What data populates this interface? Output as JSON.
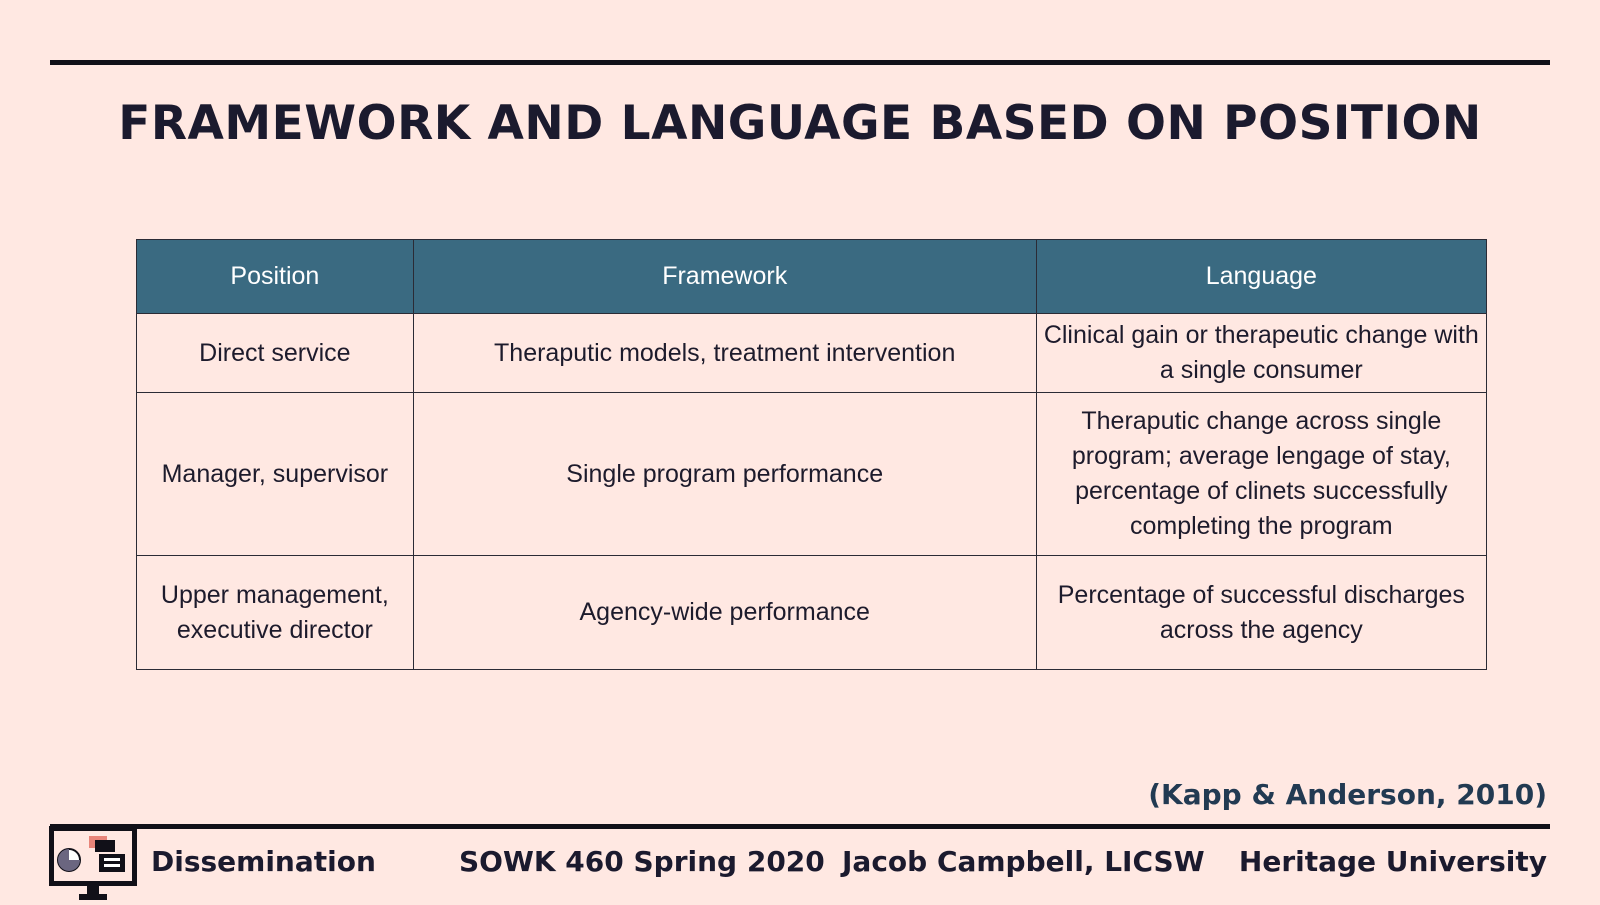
{
  "slide": {
    "title": "FRAMEWORK AND LANGUAGE BASED ON POSITION",
    "citation": "(Kapp & Anderson, 2010)"
  },
  "table": {
    "headers": [
      "Position",
      "Framework",
      "Language"
    ],
    "rows": [
      {
        "position": "Direct service",
        "framework": "Theraputic models, treatment intervention",
        "language": "Clinical gain or therapeutic change with a single consumer"
      },
      {
        "position": "Manager, supervisor",
        "framework": "Single program performance",
        "language": "Theraputic change across single program; average lengage of stay, percentage of clinets successfully completing the program"
      },
      {
        "position": "Upper management, executive director",
        "framework": "Agency-wide performance",
        "language": "Percentage of successful discharges across the agency"
      }
    ]
  },
  "footer": {
    "icon": "presentation-monitor-icon",
    "section": "Dissemination",
    "course": "SOWK 460 Spring 2020",
    "author": "Jacob Campbell, LICSW",
    "university": "Heritage University"
  },
  "colors": {
    "background": "#ffe8e2",
    "table_header": "#3a6a81",
    "citation": "#223a52",
    "title": "#1b1a2e",
    "rule": "#111018"
  }
}
